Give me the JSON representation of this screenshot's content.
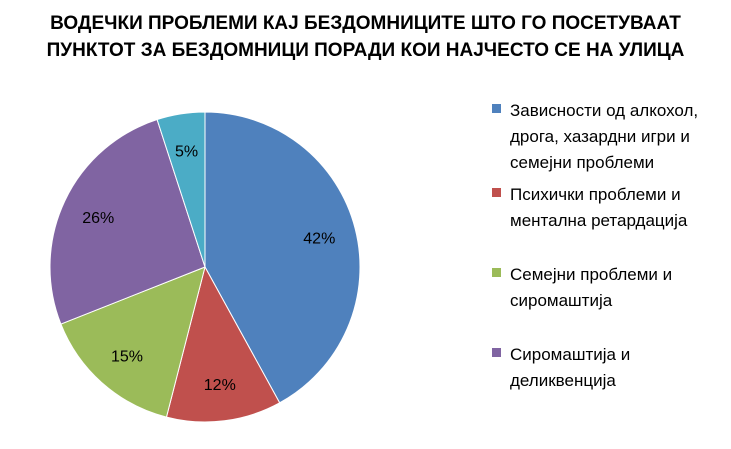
{
  "title": {
    "line1": "ВОДЕЧКИ ПРОБЛЕМИ КАЈ БЕЗДОМНИЦИТЕ ШТО ГО ПОСЕТУВААТ",
    "line2": "ПУНКТОТ ЗА БЕЗДОМНИЦИ ПОРАДИ КОИ НАЈЧЕСТО СЕ НА УЛИЦА"
  },
  "chart_data": {
    "type": "pie",
    "categories": [
      "Зависности од алкохол, дрога, хазардни игри  и семејни проблеми",
      "Психички проблеми и ментална ретардација",
      "Семејни проблеми и сиромаштија",
      "Сиромаштија и деликвенција",
      ""
    ],
    "values": [
      42,
      12,
      15,
      26,
      5
    ],
    "labels": [
      "42%",
      "12%",
      "15%",
      "26%",
      "5%"
    ],
    "colors": [
      "#4f81bd",
      "#c0504d",
      "#9bbb59",
      "#8064a2",
      "#4bacc6"
    ],
    "legend": [
      {
        "lines": [
          "Зависности од алкохол,",
          "дрога, хазардни игри  и",
          "семејни проблеми"
        ],
        "color": "#4f81bd"
      },
      {
        "lines": [
          "Психички проблеми и",
          "ментална ретардација"
        ],
        "color": "#c0504d"
      },
      {
        "lines": [
          "Семејни проблеми и",
          "сиромаштија"
        ],
        "color": "#9bbb59"
      },
      {
        "lines": [
          "Сиромаштија и",
          "деликвенција"
        ],
        "color": "#8064a2"
      }
    ],
    "legend_position": "right"
  }
}
